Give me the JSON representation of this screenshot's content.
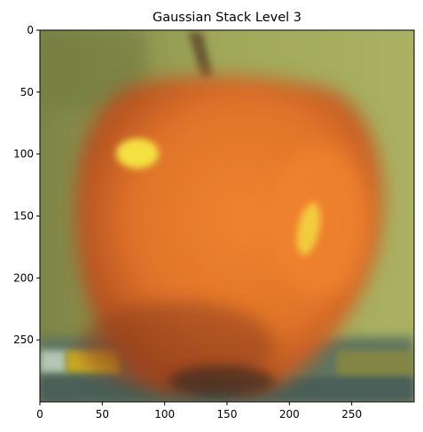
{
  "figure": {
    "title": "Gaussian Stack Level 3"
  },
  "axes": {
    "x_ticks": [
      0,
      50,
      100,
      150,
      200,
      250
    ],
    "y_ticks": [
      0,
      50,
      100,
      150,
      200,
      250
    ],
    "x_range": [
      0,
      300
    ],
    "y_range": [
      0,
      300
    ],
    "y_inverted": true
  },
  "image": {
    "subject": "blurred apple",
    "colors": {
      "background": "#a4ad5c",
      "apple_main": "#e0742a",
      "apple_shadow": "#9a3e1e",
      "highlight": "#f4e040",
      "table": "#5f7560",
      "stem": "#6a5a32"
    }
  }
}
